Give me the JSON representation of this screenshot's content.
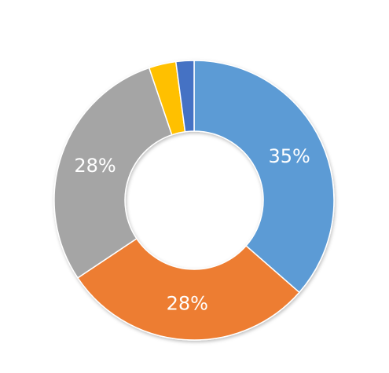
{
  "chart_data": {
    "type": "donut",
    "values": [
      35,
      28,
      28,
      3,
      2
    ],
    "value_labels": [
      "35%",
      "28%",
      "28%",
      null,
      null
    ],
    "colors": [
      "#5b9bd5",
      "#ed7d31",
      "#a5a5a5",
      "#ffc000",
      "#4472c4"
    ]
  }
}
